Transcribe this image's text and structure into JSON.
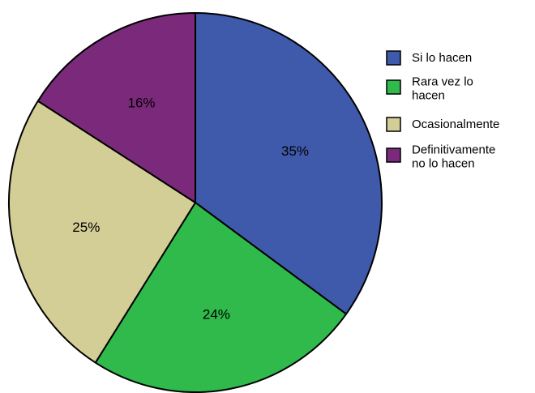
{
  "chart_data": {
    "type": "pie",
    "title": "",
    "start_angle_deg": 0,
    "direction": "clockwise",
    "legend_position": "right",
    "slices": [
      {
        "label": "Si lo hacen",
        "legend_lines": [
          "Si lo hacen"
        ],
        "value": 35,
        "value_label": "35%",
        "color": "#3f59ab"
      },
      {
        "label": "Rara vez lo hacen",
        "legend_lines": [
          "Rara vez lo",
          "hacen"
        ],
        "value": 24,
        "value_label": "24%",
        "color": "#2fba4b"
      },
      {
        "label": "Ocasionalmente",
        "legend_lines": [
          "Ocasionalmente"
        ],
        "value": 25,
        "value_label": "25%",
        "color": "#d3cd96"
      },
      {
        "label": "Definitivamente no lo hacen",
        "legend_lines": [
          "Definitivamente",
          "no lo hacen"
        ],
        "value": 16,
        "value_label": "16%",
        "color": "#7b2a7b"
      }
    ]
  }
}
